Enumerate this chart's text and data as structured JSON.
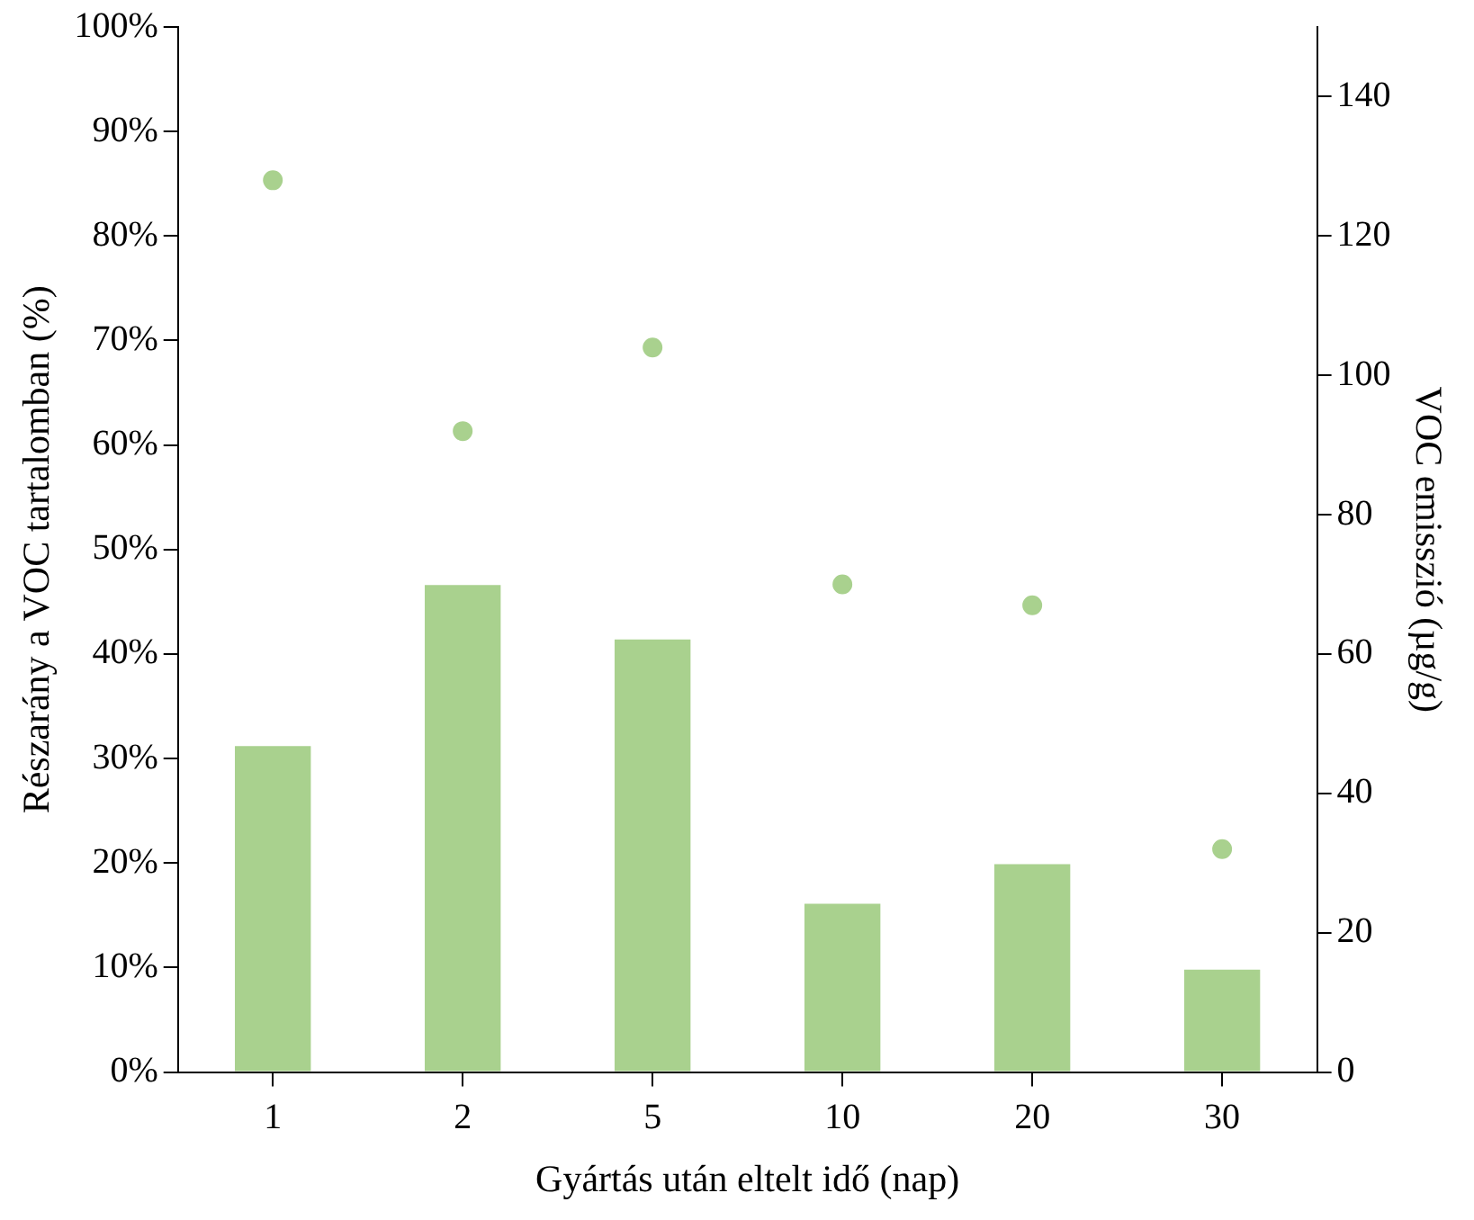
{
  "chart_data": {
    "type": "bar",
    "xlabel": "Gyártás után eltelt idő (nap)",
    "ylabel": "Részarány a VOC tartalomban (%)",
    "y2label": "VOC emisszió (µg/g)",
    "categories": [
      "1",
      "2",
      "5",
      "10",
      "20",
      "30"
    ],
    "series": [
      {
        "color": "#a9d18e",
        "values": [
          31.2,
          46.6,
          41.4,
          16.1,
          19.9,
          9.8
        ]
      },
      {
        "type": "scatter",
        "axis": "y2",
        "color": "#a9d18e",
        "x": [
          "1",
          "2",
          "5",
          "10",
          "20",
          "30"
        ],
        "values": [
          128,
          92,
          104,
          70,
          67,
          32
        ]
      }
    ],
    "ylim": [
      0,
      100
    ],
    "yticks": [
      {
        "value": 0,
        "label": "0%"
      },
      {
        "value": 10,
        "label": "10%"
      },
      {
        "value": 20,
        "label": "20%"
      },
      {
        "value": 30,
        "label": "30%"
      },
      {
        "value": 40,
        "label": "40%"
      },
      {
        "value": 50,
        "label": "50%"
      },
      {
        "value": 60,
        "label": "60%"
      },
      {
        "value": 70,
        "label": "70%"
      },
      {
        "value": 80,
        "label": "80%"
      },
      {
        "value": 90,
        "label": "90%"
      },
      {
        "value": 100,
        "label": "100%"
      }
    ],
    "y2lim": [
      0,
      150
    ],
    "y2ticks": [
      0,
      20,
      40,
      60,
      80,
      100,
      120,
      140
    ],
    "grid": false,
    "legend": false,
    "marker": "circle"
  }
}
